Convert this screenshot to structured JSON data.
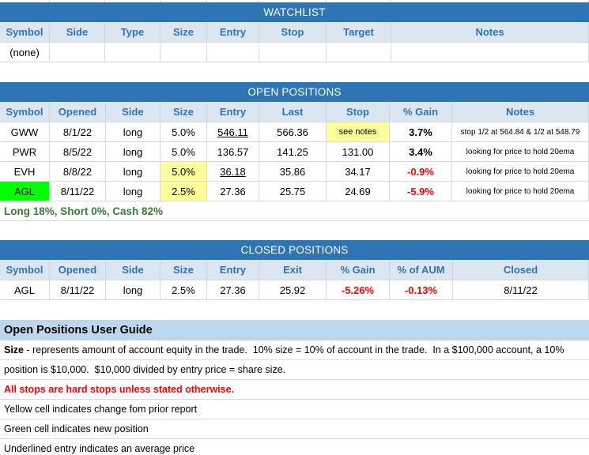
{
  "colors": {
    "header_bar_blue": "#2e75b6",
    "column_header_bg": "#dce6f1",
    "column_header_text": "#2e74b5",
    "highlight_yellow": "#ffff99",
    "new_position_green": "#00ff00",
    "negative_red": "#ff0000",
    "summary_green": "#377d37",
    "guide_header_bg": "#bdd7ee"
  },
  "watchlist": {
    "title": "WATCHLIST",
    "headers": [
      "Symbol",
      "Side",
      "Type",
      "Size",
      "Entry",
      "Stop",
      "Target",
      "Notes"
    ],
    "rows": [
      {
        "symbol": "(none)",
        "side": "",
        "type": "",
        "size": "",
        "entry": "",
        "stop": "",
        "target": "",
        "notes": ""
      }
    ]
  },
  "open_positions": {
    "title": "OPEN POSITIONS",
    "headers": [
      "Symbol",
      "Opened",
      "Side",
      "Size",
      "Entry",
      "Last",
      "Stop",
      "% Gain",
      "Notes"
    ],
    "rows": [
      {
        "symbol": "GWW",
        "opened": "8/1/22",
        "side": "long",
        "size": "5.0%",
        "entry": "546.11",
        "last": "566.36",
        "stop": "see notes",
        "gain": "3.7%",
        "notes": "stop 1/2 at 564.84 & 1/2 at 548.79"
      },
      {
        "symbol": "PWR",
        "opened": "8/5/22",
        "side": "long",
        "size": "5.0%",
        "entry": "136.57",
        "last": "141.25",
        "stop": "131.00",
        "gain": "3.4%",
        "notes": "looking for price to hold 20ema"
      },
      {
        "symbol": "EVH",
        "opened": "8/8/22",
        "side": "long",
        "size": "5.0%",
        "entry": "36.18",
        "last": "35.86",
        "stop": "34.17",
        "gain": "-0.9%",
        "notes": "looking for price to hold 20ema"
      },
      {
        "symbol": "AGL",
        "opened": "8/11/22",
        "side": "long",
        "size": "2.5%",
        "entry": "27.36",
        "last": "25.75",
        "stop": "24.69",
        "gain": "-5.9%",
        "notes": "looking for price to hold 20ema"
      }
    ],
    "summary": "Long 18%, Short 0%, Cash 82%"
  },
  "closed_positions": {
    "title": "CLOSED POSITIONS",
    "headers": [
      "Symbol",
      "Opened",
      "Side",
      "Size",
      "Entry",
      "Exit",
      "% Gain",
      "% of AUM",
      "Closed"
    ],
    "rows": [
      {
        "symbol": "AGL",
        "opened": "8/11/22",
        "side": "long",
        "size": "2.5%",
        "entry": "27.36",
        "exit": "25.92",
        "gain": "-5.26%",
        "aum": "-0.13%",
        "closed": "8/11/22"
      }
    ]
  },
  "user_guide": {
    "title": "Open Positions User Guide",
    "size_term": "Size",
    "size_def_line1": " - represents amount of account equity in the trade.  10% size = 10% of account in the trade.  In a $100,000 account, a 10%",
    "size_def_line2": "position is $10,000.  $10,000 divided by entry price = share size.",
    "stops_warning": "All stops are hard stops unless stated otherwise.",
    "yellow_note": "Yellow cell indicates change fom prior report",
    "green_note": "Green cell indicates new position",
    "underline_note": "Underlined entry indicates an average price"
  }
}
